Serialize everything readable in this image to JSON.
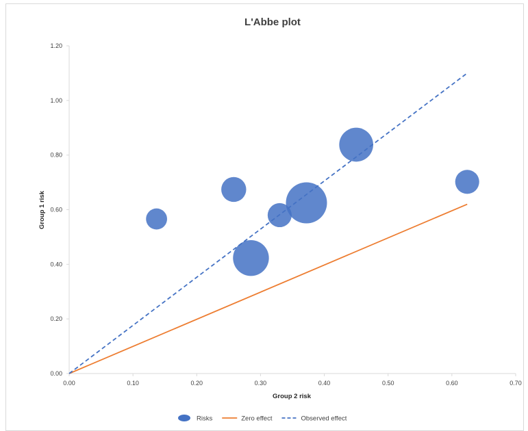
{
  "chart_data": {
    "type": "bubble",
    "title": "L'Abbe plot",
    "xlabel": "Group 2 risk",
    "ylabel": "Group 1 risk",
    "xlim": [
      0,
      0.7
    ],
    "ylim": [
      0,
      1.2
    ],
    "x_ticks": [
      "0.00",
      "0.10",
      "0.20",
      "0.30",
      "0.40",
      "0.50",
      "0.60",
      "0.70"
    ],
    "y_ticks": [
      "0.00",
      "0.20",
      "0.40",
      "0.60",
      "0.80",
      "1.00",
      "1.20"
    ],
    "grid": false,
    "legend_position": "bottom",
    "series": [
      {
        "name": "Risks",
        "kind": "bubble",
        "color": "#4472c4",
        "points": [
          {
            "x": 0.137,
            "y": 0.566,
            "size": 1.0
          },
          {
            "x": 0.258,
            "y": 0.674,
            "size": 1.4
          },
          {
            "x": 0.285,
            "y": 0.423,
            "size": 2.9
          },
          {
            "x": 0.33,
            "y": 0.58,
            "size": 1.3
          },
          {
            "x": 0.372,
            "y": 0.625,
            "size": 3.8
          },
          {
            "x": 0.45,
            "y": 0.838,
            "size": 2.6
          },
          {
            "x": 0.624,
            "y": 0.702,
            "size": 1.3
          }
        ]
      },
      {
        "name": "Zero effect",
        "kind": "line",
        "color": "#ed7d31",
        "dash": false,
        "points": [
          {
            "x": 0,
            "y": 0
          },
          {
            "x": 0.624,
            "y": 0.62
          }
        ]
      },
      {
        "name": "Observed effect",
        "kind": "line",
        "color": "#4472c4",
        "dash": true,
        "points": [
          {
            "x": 0,
            "y": 0
          },
          {
            "x": 0.624,
            "y": 1.1
          }
        ]
      }
    ]
  }
}
